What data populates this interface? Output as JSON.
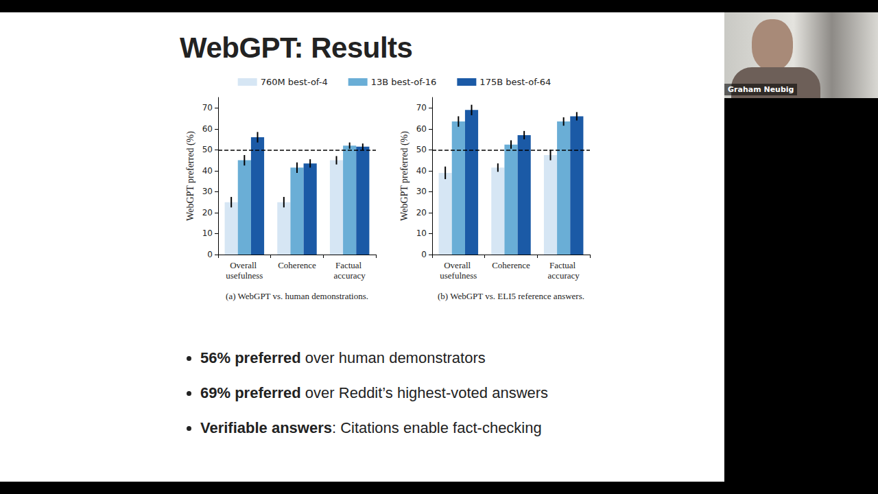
{
  "title": "WebGPT: Results",
  "chart_data": [
    {
      "type": "bar",
      "caption": "(a) WebGPT vs. human demonstrations.",
      "y_label": "WebGPT preferred (%)",
      "categories": [
        "Overall usefulness",
        "Coherence",
        "Factual accuracy"
      ],
      "series": [
        {
          "name": "760M best-of-4",
          "color": "#d6e6f4",
          "values": [
            25,
            25,
            45
          ],
          "errors": [
            2.5,
            2.5,
            2
          ]
        },
        {
          "name": "13B best-of-16",
          "color": "#6aaed6",
          "values": [
            45,
            41.5,
            52
          ],
          "errors": [
            2.5,
            2.5,
            1.5
          ]
        },
        {
          "name": "175B best-of-64",
          "color": "#1b5aa6",
          "values": [
            56,
            43.5,
            51.5
          ],
          "errors": [
            2.5,
            2,
            1.5
          ]
        }
      ],
      "ylim": [
        0,
        75
      ],
      "yticks": [
        0,
        10,
        20,
        30,
        40,
        50,
        60,
        70
      ],
      "baseline": 50,
      "grid": false,
      "legend": "top"
    },
    {
      "type": "bar",
      "caption": "(b) WebGPT vs. ELI5 reference answers.",
      "y_label": "WebGPT preferred (%)",
      "categories": [
        "Overall usefulness",
        "Coherence",
        "Factual accuracy"
      ],
      "series": [
        {
          "name": "760M best-of-4",
          "color": "#d6e6f4",
          "values": [
            39,
            41.5,
            47.5
          ],
          "errors": [
            3,
            2,
            2.5
          ]
        },
        {
          "name": "13B best-of-16",
          "color": "#6aaed6",
          "values": [
            63.5,
            52.5,
            63.5
          ],
          "errors": [
            2.5,
            2,
            2
          ]
        },
        {
          "name": "175B best-of-64",
          "color": "#1b5aa6",
          "values": [
            69,
            57,
            66
          ],
          "errors": [
            2.5,
            2,
            2
          ]
        }
      ],
      "ylim": [
        0,
        75
      ],
      "yticks": [
        0,
        10,
        20,
        30,
        40,
        50,
        60,
        70
      ],
      "baseline": 50,
      "grid": false,
      "legend": "top"
    }
  ],
  "bullets": [
    {
      "bold": "56% preferred",
      "text": " over human demonstrators"
    },
    {
      "bold": "69% preferred",
      "text": " over Reddit’s highest-voted answers"
    },
    {
      "bold": "Verifiable answers",
      "text": ": Citations enable fact-checking"
    }
  ],
  "speaker_label": "Graham Neubig"
}
